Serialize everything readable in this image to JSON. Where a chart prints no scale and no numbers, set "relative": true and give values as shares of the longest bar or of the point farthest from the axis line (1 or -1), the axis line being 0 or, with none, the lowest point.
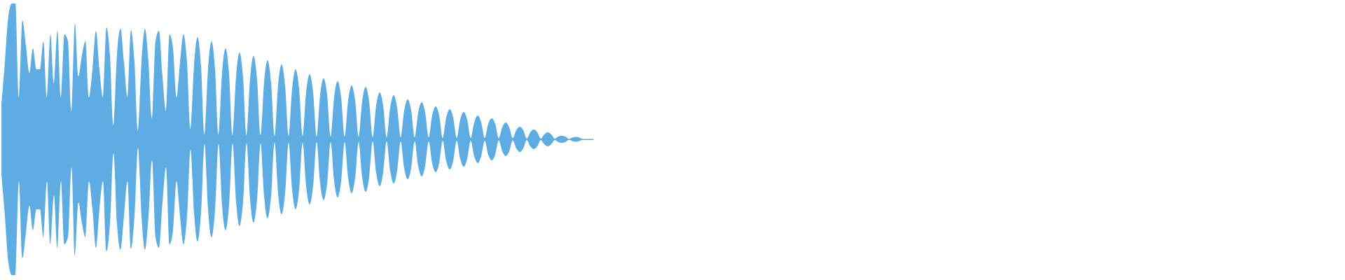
{
  "chart_data": {
    "type": "area",
    "relative": true,
    "categories": [
      null,
      null,
      null,
      null,
      null,
      null,
      null,
      null,
      null,
      null,
      null,
      null,
      null,
      null,
      null,
      null,
      null,
      null,
      null,
      null,
      null,
      null,
      null,
      null,
      null,
      null,
      null,
      null,
      null,
      null,
      null,
      null,
      null,
      null,
      null,
      null,
      null,
      null,
      null,
      null,
      null,
      null,
      null,
      null,
      null,
      null,
      null,
      null,
      null,
      null,
      null,
      null,
      null,
      null,
      null,
      null,
      null,
      null,
      null,
      null,
      null,
      null,
      null,
      null,
      null,
      null,
      null,
      null,
      null,
      null,
      null,
      null,
      null,
      null,
      null,
      null,
      null,
      null,
      null,
      null,
      null,
      null,
      null,
      null,
      null,
      null,
      null,
      null,
      null,
      null,
      null,
      null,
      null,
      null,
      null,
      null,
      null,
      null,
      null,
      null,
      null,
      null,
      null,
      null,
      null,
      null,
      null,
      null,
      null,
      null,
      null,
      null,
      null,
      null,
      null,
      null,
      null,
      null,
      null,
      null,
      null,
      null,
      null,
      null,
      null,
      null,
      null,
      null,
      null,
      null,
      null,
      null,
      null,
      null,
      null,
      null,
      null,
      null,
      null,
      null,
      null,
      null,
      null,
      null,
      null,
      null,
      null,
      null,
      null,
      null,
      null,
      null,
      null,
      null,
      null,
      null,
      null,
      null,
      null,
      null,
      null,
      null,
      null,
      null,
      null,
      null,
      null,
      null,
      null,
      null
    ],
    "series": [
      {
        "color": "#5dade2",
        "values": [
          0.258,
          0.567,
          0.907,
          1,
          1,
          0.309,
          0.876,
          0.691,
          0.49,
          0.67,
          0.515,
          0.515,
          0.722,
          0.309,
          0.773,
          0.412,
          0.799,
          0.309,
          0.773,
          0.722,
          0.206,
          0.856,
          0.464,
          0.619,
          0.722,
          0.309,
          0.515,
          0.799,
          0.515,
          0.309,
          0.825,
          0.619,
          0.103,
          0.619,
          0.814,
          0.567,
          0.309,
          0.804,
          0.567,
          0.062,
          0.567,
          0.814,
          0.567,
          0.155,
          0.722,
          0.799,
          0.464,
          0.206,
          0.773,
          0.67,
          0.309,
          0.567,
          0.773,
          0.567,
          0.077,
          0.541,
          0.753,
          0.541,
          0.036,
          0.515,
          0.722,
          0.521,
          0.036,
          0.485,
          0.67,
          0.485,
          0.031,
          0.459,
          0.639,
          0.459,
          0.031,
          0.443,
          0.613,
          0.443,
          0.031,
          0.418,
          0.582,
          0.418,
          0.026,
          0.397,
          0.552,
          0.397,
          0.026,
          0.371,
          0.515,
          0.371,
          0.026,
          0.345,
          0.479,
          0.345,
          0.021,
          0.325,
          0.448,
          0.325,
          0.021,
          0.309,
          0.428,
          0.309,
          0.021,
          0.284,
          0.397,
          0.284,
          0.021,
          0.278,
          0.387,
          0.278,
          0.015,
          0.247,
          0.345,
          0.247,
          0.015,
          0.232,
          0.325,
          0.232,
          0.015,
          0.211,
          0.294,
          0.211,
          0.015,
          0.196,
          0.273,
          0.196,
          0.015,
          0.175,
          0.242,
          0.175,
          0.01,
          0.16,
          0.222,
          0.16,
          0.01,
          0.144,
          0.201,
          0.144,
          0.01,
          0.124,
          0.175,
          0.124,
          0.01,
          0.113,
          0.155,
          0.113,
          0.008,
          0.088,
          0.124,
          0.088,
          0.008,
          0.067,
          0.093,
          0.067,
          0.005,
          0.052,
          0.072,
          0.052,
          0.005,
          0.036,
          0.052,
          0.036,
          0.005,
          0.021,
          0.026,
          0.021,
          0.003,
          0.013,
          0.018,
          0.013,
          0.003,
          0.003,
          0.003,
          0.003
        ]
      },
      {
        "color": "#5dade2",
        "values": [
          -0.258,
          -0.567,
          -0.907,
          -1,
          -1,
          -0.309,
          -0.876,
          -0.691,
          -0.49,
          -0.67,
          -0.515,
          -0.515,
          -0.722,
          -0.309,
          -0.773,
          -0.412,
          -0.799,
          -0.309,
          -0.773,
          -0.722,
          -0.206,
          -0.856,
          -0.464,
          -0.619,
          -0.722,
          -0.309,
          -0.515,
          -0.799,
          -0.515,
          -0.309,
          -0.825,
          -0.619,
          -0.103,
          -0.619,
          -0.814,
          -0.567,
          -0.309,
          -0.804,
          -0.567,
          -0.062,
          -0.567,
          -0.814,
          -0.567,
          -0.155,
          -0.722,
          -0.799,
          -0.464,
          -0.206,
          -0.773,
          -0.67,
          -0.309,
          -0.567,
          -0.773,
          -0.567,
          -0.077,
          -0.541,
          -0.753,
          -0.541,
          -0.036,
          -0.515,
          -0.722,
          -0.521,
          -0.036,
          -0.485,
          -0.67,
          -0.485,
          -0.031,
          -0.459,
          -0.639,
          -0.459,
          -0.031,
          -0.443,
          -0.613,
          -0.443,
          -0.031,
          -0.418,
          -0.582,
          -0.418,
          -0.026,
          -0.397,
          -0.552,
          -0.397,
          -0.026,
          -0.371,
          -0.515,
          -0.371,
          -0.026,
          -0.345,
          -0.479,
          -0.345,
          -0.021,
          -0.325,
          -0.448,
          -0.325,
          -0.021,
          -0.309,
          -0.428,
          -0.309,
          -0.021,
          -0.284,
          -0.397,
          -0.284,
          -0.021,
          -0.278,
          -0.387,
          -0.278,
          -0.015,
          -0.247,
          -0.345,
          -0.247,
          -0.015,
          -0.232,
          -0.325,
          -0.232,
          -0.015,
          -0.211,
          -0.294,
          -0.211,
          -0.015,
          -0.196,
          -0.273,
          -0.196,
          -0.015,
          -0.175,
          -0.242,
          -0.175,
          -0.01,
          -0.16,
          -0.222,
          -0.16,
          -0.01,
          -0.144,
          -0.201,
          -0.144,
          -0.01,
          -0.124,
          -0.175,
          -0.124,
          -0.01,
          -0.113,
          -0.155,
          -0.113,
          -0.008,
          -0.088,
          -0.124,
          -0.088,
          -0.008,
          -0.067,
          -0.093,
          -0.067,
          -0.005,
          -0.052,
          -0.072,
          -0.052,
          -0.005,
          -0.036,
          -0.052,
          -0.036,
          -0.005,
          -0.021,
          -0.026,
          -0.021,
          -0.003,
          -0.013,
          -0.018,
          -0.013,
          -0.003,
          -0.003,
          -0.003,
          -0.003
        ]
      }
    ]
  }
}
